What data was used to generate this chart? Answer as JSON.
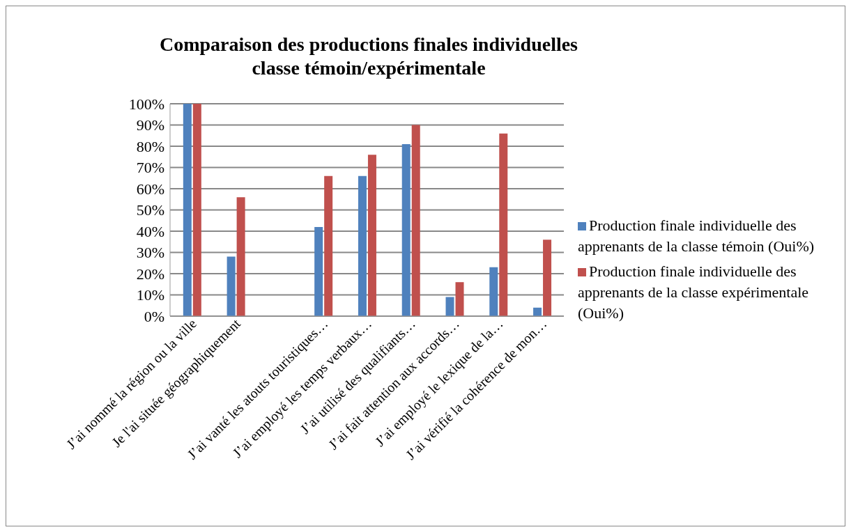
{
  "chart_data": {
    "type": "bar",
    "title": "Comparaison des productions finales individuelles classe témoin/expérimentale",
    "categories": [
      "J’ai nommé la région ou la ville",
      "Je l'ai située géographiquement",
      null,
      "J’ai vanté les atouts touristiques…",
      "J’ai employé les temps verbaux…",
      "J’ai utilisé des qualifiants…",
      "J’ai fait attention aux accords…",
      "J’ai employé le lexique de la…",
      "J’ai vérifié la cohérence de mon…"
    ],
    "series": [
      {
        "name": "Production finale individuelle des apprenants de la classe témoin (Oui%)",
        "color": "#4f81bd",
        "values": [
          100,
          28,
          null,
          42,
          66,
          81,
          9,
          23,
          4
        ]
      },
      {
        "name": "Production finale individuelle des apprenants de la classe expérimentale (Oui%)",
        "color": "#c0504d",
        "values": [
          100,
          56,
          null,
          66,
          76,
          90,
          16,
          86,
          36
        ]
      }
    ],
    "ylim": [
      0,
      100
    ],
    "yticks": [
      {
        "value": 0,
        "label": "0%"
      },
      {
        "value": 10,
        "label": "10%"
      },
      {
        "value": 20,
        "label": "20%"
      },
      {
        "value": 30,
        "label": "30%"
      },
      {
        "value": 40,
        "label": "40%"
      },
      {
        "value": 50,
        "label": "50%"
      },
      {
        "value": 60,
        "label": "60%"
      },
      {
        "value": 70,
        "label": "70%"
      },
      {
        "value": 80,
        "label": "80%"
      },
      {
        "value": 90,
        "label": "90%"
      },
      {
        "value": 100,
        "label": "100%"
      }
    ],
    "grid": "y",
    "legend": "right"
  }
}
